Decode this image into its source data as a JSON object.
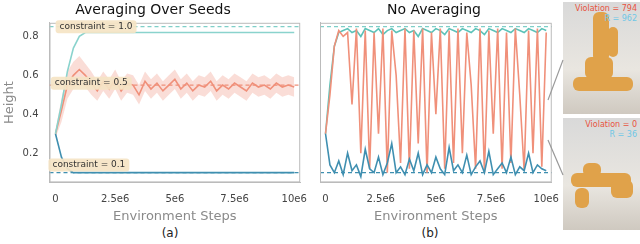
{
  "chart_data": [
    {
      "type": "line",
      "title": "Averaging Over Seeds",
      "x_label": "Environment Steps",
      "y_label": "Height",
      "panel_label": "(a)",
      "xlim": [
        -250000,
        10250000
      ],
      "xticks": [
        0,
        {
          "value": 2500000,
          "label": "2.5e6"
        },
        {
          "value": 5000000,
          "label": "5e6"
        },
        {
          "value": 7500000,
          "label": "7.5e6"
        },
        {
          "value": 10000000,
          "label": "10e6"
        }
      ],
      "ylim": [
        0.05,
        0.87
      ],
      "yticks": [
        0.2,
        0.4,
        0.6,
        0.8
      ],
      "grid": false,
      "x": [
        0,
        250000,
        500000,
        750000,
        1000000,
        1250000,
        1500000,
        1750000,
        2000000,
        2250000,
        2500000,
        2750000,
        3000000,
        3250000,
        3500000,
        3750000,
        4000000,
        4250000,
        4500000,
        4750000,
        5000000,
        5250000,
        5500000,
        5750000,
        6000000,
        6250000,
        6500000,
        6750000,
        7000000,
        7250000,
        7500000,
        7750000,
        8000000,
        8250000,
        8500000,
        8750000,
        9000000,
        9250000,
        9500000,
        9750000,
        10000000
      ],
      "series": [
        {
          "color": "#8ad3cd",
          "values": [
            0.3,
            0.45,
            0.62,
            0.74,
            0.8,
            0.82,
            0.82,
            0.82,
            0.82,
            0.82,
            0.82,
            0.82,
            0.82,
            0.82,
            0.82,
            0.82,
            0.82,
            0.82,
            0.82,
            0.82,
            0.82,
            0.82,
            0.82,
            0.82,
            0.82,
            0.82,
            0.82,
            0.82,
            0.82,
            0.82,
            0.82,
            0.82,
            0.82,
            0.82,
            0.82,
            0.82,
            0.82,
            0.82,
            0.82,
            0.82,
            0.82
          ]
        },
        {
          "color": "#f0907a",
          "values": [
            0.3,
            0.42,
            0.55,
            0.6,
            0.63,
            0.6,
            0.56,
            0.52,
            0.57,
            0.53,
            0.58,
            0.52,
            0.56,
            0.55,
            0.5,
            0.57,
            0.53,
            0.56,
            0.52,
            0.55,
            0.58,
            0.53,
            0.56,
            0.52,
            0.55,
            0.54,
            0.57,
            0.52,
            0.55,
            0.53,
            0.56,
            0.54,
            0.52,
            0.56,
            0.54,
            0.55,
            0.53,
            0.56,
            0.54,
            0.55,
            0.54
          ],
          "lower": [
            0.28,
            0.36,
            0.48,
            0.53,
            0.56,
            0.54,
            0.5,
            0.47,
            0.52,
            0.48,
            0.53,
            0.47,
            0.51,
            0.5,
            0.45,
            0.52,
            0.48,
            0.51,
            0.47,
            0.5,
            0.53,
            0.48,
            0.51,
            0.47,
            0.5,
            0.49,
            0.52,
            0.47,
            0.5,
            0.48,
            0.51,
            0.49,
            0.47,
            0.51,
            0.49,
            0.5,
            0.48,
            0.51,
            0.49,
            0.5,
            0.49
          ],
          "upper": [
            0.32,
            0.48,
            0.62,
            0.67,
            0.7,
            0.66,
            0.62,
            0.57,
            0.62,
            0.58,
            0.63,
            0.57,
            0.61,
            0.6,
            0.55,
            0.62,
            0.58,
            0.61,
            0.57,
            0.6,
            0.63,
            0.58,
            0.61,
            0.57,
            0.6,
            0.59,
            0.62,
            0.57,
            0.6,
            0.58,
            0.61,
            0.59,
            0.57,
            0.61,
            0.59,
            0.6,
            0.58,
            0.61,
            0.59,
            0.6,
            0.59
          ]
        },
        {
          "color": "#3f8fb0",
          "values": [
            0.3,
            0.18,
            0.12,
            0.1,
            0.1,
            0.1,
            0.1,
            0.1,
            0.1,
            0.1,
            0.1,
            0.1,
            0.1,
            0.1,
            0.1,
            0.1,
            0.1,
            0.1,
            0.1,
            0.1,
            0.1,
            0.1,
            0.1,
            0.1,
            0.1,
            0.1,
            0.1,
            0.1,
            0.1,
            0.1,
            0.1,
            0.1,
            0.1,
            0.1,
            0.1,
            0.1,
            0.1,
            0.1,
            0.1,
            0.1,
            0.1
          ]
        }
      ],
      "reference_lines": [
        {
          "value": 0.85,
          "color": "#7fcfc8"
        },
        {
          "value": 0.55,
          "color": "#f0907a"
        },
        {
          "value": 0.1,
          "color": "#3f8fb0"
        }
      ],
      "annotations": [
        {
          "text": "constraint = 1.0",
          "x": 1700000,
          "y": 0.85
        },
        {
          "text": "constraint = 0.5",
          "x": 1500000,
          "y": 0.56
        },
        {
          "text": "constraint = 0.1",
          "x": 1400000,
          "y": 0.14
        }
      ]
    },
    {
      "type": "line",
      "title": "No Averaging",
      "x_label": "Environment Steps",
      "panel_label": "(b)",
      "tick_labels": "x",
      "xlim": [
        -250000,
        10250000
      ],
      "xticks": [
        0,
        {
          "value": 2500000,
          "label": "2.5e6"
        },
        {
          "value": 5000000,
          "label": "5e6"
        },
        {
          "value": 7500000,
          "label": "7.5e6"
        },
        {
          "value": 10000000,
          "label": "10e6"
        }
      ],
      "ylim": [
        0.05,
        0.87
      ],
      "yticks": [
        0.2,
        0.4,
        0.6,
        0.8
      ],
      "grid": false,
      "x": [
        0,
        200000,
        400000,
        600000,
        800000,
        1000000,
        1200000,
        1400000,
        1600000,
        1800000,
        2000000,
        2200000,
        2400000,
        2600000,
        2800000,
        3000000,
        3200000,
        3400000,
        3600000,
        3800000,
        4000000,
        4200000,
        4400000,
        4600000,
        4800000,
        5000000,
        5200000,
        5400000,
        5600000,
        5800000,
        6000000,
        6200000,
        6400000,
        6600000,
        6800000,
        7000000,
        7200000,
        7400000,
        7600000,
        7800000,
        8000000,
        8200000,
        8400000,
        8600000,
        8800000,
        9000000,
        9200000,
        9400000,
        9600000,
        9800000,
        10000000
      ],
      "series": [
        {
          "color": "#3f8fb0",
          "values": [
            0.3,
            0.14,
            0.1,
            0.16,
            0.09,
            0.2,
            0.11,
            0.14,
            0.08,
            0.22,
            0.12,
            0.1,
            0.18,
            0.09,
            0.15,
            0.25,
            0.1,
            0.13,
            0.09,
            0.17,
            0.11,
            0.2,
            0.09,
            0.14,
            0.1,
            0.18,
            0.12,
            0.09,
            0.23,
            0.11,
            0.14,
            0.1,
            0.19,
            0.09,
            0.13,
            0.16,
            0.1,
            0.21,
            0.09,
            0.12,
            0.15,
            0.1,
            0.18,
            0.09,
            0.13,
            0.11,
            0.2,
            0.1,
            0.14,
            0.12,
            0.11
          ]
        },
        {
          "color": "#f0907a",
          "values": [
            0.3,
            0.5,
            0.75,
            0.83,
            0.8,
            0.82,
            0.45,
            0.84,
            0.2,
            0.83,
            0.12,
            0.82,
            0.3,
            0.84,
            0.1,
            0.83,
            0.6,
            0.15,
            0.84,
            0.12,
            0.83,
            0.25,
            0.84,
            0.1,
            0.82,
            0.4,
            0.84,
            0.12,
            0.83,
            0.15,
            0.84,
            0.2,
            0.82,
            0.55,
            0.12,
            0.84,
            0.1,
            0.83,
            0.3,
            0.84,
            0.12,
            0.82,
            0.15,
            0.84,
            0.5,
            0.11,
            0.83,
            0.2,
            0.84,
            0.13,
            0.82
          ]
        },
        {
          "color": "#5cc2b8",
          "values": [
            0.3,
            0.55,
            0.75,
            0.82,
            0.83,
            0.84,
            0.82,
            0.83,
            0.8,
            0.84,
            0.83,
            0.82,
            0.84,
            0.81,
            0.83,
            0.84,
            0.82,
            0.83,
            0.84,
            0.82,
            0.83,
            0.8,
            0.84,
            0.83,
            0.82,
            0.84,
            0.83,
            0.81,
            0.84,
            0.83,
            0.82,
            0.84,
            0.83,
            0.82,
            0.84,
            0.83,
            0.81,
            0.84,
            0.83,
            0.82,
            0.84,
            0.83,
            0.82,
            0.84,
            0.83,
            0.82,
            0.84,
            0.83,
            0.82,
            0.84,
            0.83
          ]
        }
      ],
      "reference_lines": [
        {
          "value": 0.85,
          "color": "#7fcfc8"
        },
        {
          "value": 0.1,
          "color": "#3f8fb0"
        }
      ]
    }
  ],
  "insets": [
    {
      "violation": "Violation = 794",
      "reward": "R = 962"
    },
    {
      "violation": "Violation = 0",
      "reward": "R = 36"
    }
  ]
}
